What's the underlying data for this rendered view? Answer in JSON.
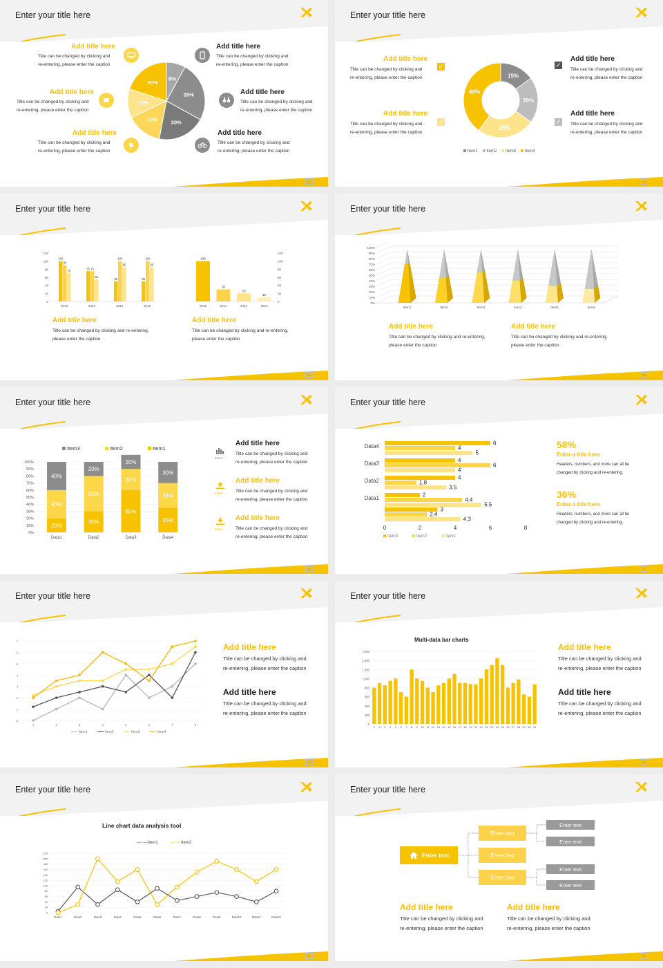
{
  "common": {
    "slide_title": "Enter your title here",
    "caption_two_line_a": "Title can be changed by clicking and",
    "caption_two_line_b": "re-entering, please enter the caption",
    "caption_wide_a": "Title can be changed by clicking and re-entering,",
    "caption_wide_b": "please enter the caption",
    "add_title": "Add title here"
  },
  "colors": {
    "yellow": "#f7c200",
    "yellow_light": "#fddc6a",
    "gray": "#8c8c8c",
    "gray_light": "#bdbdbd",
    "accent": "#f7b500"
  },
  "pages": [
    "12",
    "13",
    "14",
    "15",
    "16",
    "17",
    "18",
    "19",
    "20",
    "21"
  ],
  "s1": {
    "items_left": [
      {
        "title": "Add title here",
        "icon": "monitor-icon"
      },
      {
        "title": "Add title here",
        "icon": "car-icon"
      },
      {
        "title": "Add title here",
        "icon": "book-icon"
      }
    ],
    "items_right": [
      {
        "title": "Add title here",
        "icon": "phone-icon"
      },
      {
        "title": "Add title here",
        "icon": "binoculars-icon"
      },
      {
        "title": "Add title here",
        "icon": "bicycle-icon"
      }
    ],
    "left_caption_b": "re-entering, please enter the caption",
    "chart_data": {
      "type": "pie",
      "values": [
        8,
        25,
        20,
        15,
        12,
        20
      ],
      "labels": [
        "8%",
        "25%",
        "20%",
        "15%",
        "12%",
        "20%"
      ]
    }
  },
  "s2": {
    "left_items": [
      "Add title here",
      "Add title here"
    ],
    "right_items": [
      "Add title here",
      "Add title here"
    ],
    "chart_data": {
      "type": "pie",
      "values": [
        15,
        20,
        25,
        40
      ],
      "labels": [
        "15%",
        "20%",
        "25%",
        "40%"
      ],
      "legend": [
        "Item1",
        "Item2",
        "Item3",
        "Item4"
      ]
    }
  },
  "s3": {
    "chart_data": [
      {
        "type": "bar",
        "categories": [
          "2010",
          "2012",
          "2014",
          "2016"
        ],
        "series": [
          {
            "values": [
              100,
              75,
              50,
              50
            ]
          },
          {
            "values": [
              90,
              75,
              100,
              100
            ]
          },
          {
            "values": [
              70,
              55,
              85,
              85
            ]
          }
        ],
        "ylim": [
          0,
          120
        ],
        "yticks": [
          "0",
          "20",
          "40",
          "60",
          "80",
          "100",
          "120"
        ]
      },
      {
        "type": "bar",
        "categories": [
          "2016",
          "2014",
          "2012",
          "2010"
        ],
        "values": [
          100,
          30,
          20,
          10
        ],
        "ylim": [
          0,
          120
        ],
        "yticks": [
          "0",
          "20",
          "40",
          "60",
          "80",
          "100",
          "120"
        ]
      }
    ],
    "left_title": "Add title here",
    "right_title": "Add title here"
  },
  "s4": {
    "chart_data": {
      "type": "bar",
      "categories": [
        "Item1",
        "Item2",
        "Item3",
        "Item4",
        "Item5",
        "Item6"
      ],
      "values": [
        70,
        45,
        55,
        40,
        30,
        25
      ],
      "ylim": [
        0,
        100
      ],
      "yticks": [
        "0%",
        "10%",
        "20%",
        "30%",
        "40%",
        "50%",
        "60%",
        "70%",
        "80%",
        "90%",
        "100%"
      ]
    },
    "left_title": "Add title here",
    "right_title": "Add title here"
  },
  "s5": {
    "chart_data": {
      "type": "bar",
      "categories": [
        "Data1",
        "Data2",
        "Data3",
        "Data4"
      ],
      "series": [
        {
          "name": "Item1",
          "values": [
            20,
            30,
            60,
            35
          ]
        },
        {
          "name": "Item2",
          "values": [
            40,
            50,
            30,
            35
          ]
        },
        {
          "name": "Item3",
          "values": [
            40,
            20,
            20,
            30
          ]
        }
      ],
      "legend_order": [
        "Item3",
        "Item2",
        "Item1"
      ],
      "ylim": [
        0,
        100
      ],
      "yticks": [
        "0%",
        "10%",
        "20%",
        "30%",
        "40%",
        "50%",
        "60%",
        "70%",
        "80%",
        "90%",
        "100%"
      ]
    },
    "items": [
      {
        "title": "Add title here",
        "label": "Item3",
        "icon": "bar-chart-icon"
      },
      {
        "title": "Add title here",
        "label": "Item2",
        "icon": "upload-icon"
      },
      {
        "title": "Add title here",
        "label": "Item1",
        "icon": "download-icon"
      }
    ]
  },
  "s6": {
    "chart_data": {
      "type": "bar",
      "categories": [
        "Data4",
        "Data3",
        "Data2",
        "Data1"
      ],
      "series": [
        {
          "name": "Item3",
          "values": [
            6,
            4,
            4,
            2
          ]
        },
        {
          "name": "Item2",
          "values": [
            4,
            6,
            1.8,
            4.4
          ]
        },
        {
          "name": "Item1",
          "values": [
            5,
            4,
            3.5,
            5.5
          ]
        }
      ],
      "extra_group": [
        3,
        2.4,
        4.3
      ],
      "xticks": [
        "0",
        "2",
        "4",
        "6",
        "8"
      ]
    },
    "stat1": {
      "value": "58%",
      "title": "Enter a title here",
      "line1": "Headers, numbers, and more can all be",
      "line2": "changed by clicking and re-entering."
    },
    "stat2": {
      "value": "36%",
      "title": "Enter a title here",
      "line1": "Headers, numbers, and more can all be",
      "line2": "changed by clicking and re-entering."
    }
  },
  "s7": {
    "chart_data": {
      "type": "line",
      "x": [
        1,
        2,
        3,
        4,
        5,
        6,
        7,
        8
      ],
      "series": [
        {
          "name": "Item1",
          "values": [
            0,
            1,
            2,
            1,
            4,
            2,
            3,
            5
          ]
        },
        {
          "name": "Item2",
          "values": [
            1.2,
            2,
            2.5,
            3,
            2.5,
            4,
            2,
            6
          ]
        },
        {
          "name": "Item3",
          "values": [
            2.2,
            3,
            3.5,
            3.5,
            4.5,
            4.5,
            5,
            6.5
          ]
        },
        {
          "name": "Item4",
          "values": [
            2,
            3.5,
            4,
            6,
            5,
            3.5,
            6.5,
            7
          ]
        }
      ],
      "ylim": [
        0,
        7
      ]
    },
    "items": [
      {
        "title": "Add title here"
      },
      {
        "title": "Add title here"
      }
    ]
  },
  "s8": {
    "chart_data": {
      "type": "bar",
      "title": "Multi-data bar charts",
      "categories": [
        "1",
        "2",
        "3",
        "4",
        "5",
        "6",
        "7",
        "8",
        "9",
        "10",
        "11",
        "12",
        "13",
        "14",
        "15",
        "16",
        "17",
        "18",
        "19",
        "20",
        "21",
        "22",
        "23",
        "24",
        "25",
        "26",
        "27",
        "28",
        "29",
        "30",
        "31"
      ],
      "values": [
        800,
        900,
        850,
        950,
        1000,
        700,
        600,
        1200,
        1000,
        950,
        800,
        700,
        850,
        900,
        1000,
        1100,
        900,
        900,
        880,
        870,
        1000,
        1200,
        1300,
        1450,
        1300,
        800,
        900,
        980,
        650,
        600,
        870
      ],
      "ylim": [
        0,
        1600
      ],
      "yticks": [
        "0",
        "200",
        "400",
        "600",
        "800",
        "1,000",
        "1,200",
        "1,400",
        "1,600"
      ]
    },
    "items": [
      {
        "title": "Add title here"
      },
      {
        "title": "Add title here"
      }
    ]
  },
  "s9": {
    "chart_data": {
      "type": "line",
      "title": "Line chart data analysis tool",
      "categories": [
        "Data1",
        "Data2",
        "Data3",
        "Data4",
        "Data5",
        "Data6",
        "Data7",
        "Data8",
        "Data9",
        "Data10",
        "Data11",
        "Data12"
      ],
      "series": [
        {
          "name": "Item1",
          "values": [
            5,
            95,
            30,
            85,
            40,
            90,
            45,
            60,
            75,
            60,
            40,
            80
          ]
        },
        {
          "name": "Item2",
          "values": [
            0,
            30,
            200,
            115,
            160,
            30,
            95,
            150,
            190,
            160,
            115,
            160
          ]
        }
      ],
      "ylim": [
        0,
        220
      ],
      "yticks": [
        "0",
        "20",
        "40",
        "60",
        "80",
        "100",
        "120",
        "140",
        "160",
        "180",
        "200",
        "220"
      ]
    }
  },
  "s10": {
    "root": "Enter text",
    "mid": [
      "Enter text",
      "Enter text",
      "Enter text"
    ],
    "leaves": [
      "Enter text",
      "Enter text",
      "Enter text",
      "Enter text"
    ],
    "items": [
      {
        "title": "Add title here"
      },
      {
        "title": "Add title here"
      }
    ]
  }
}
